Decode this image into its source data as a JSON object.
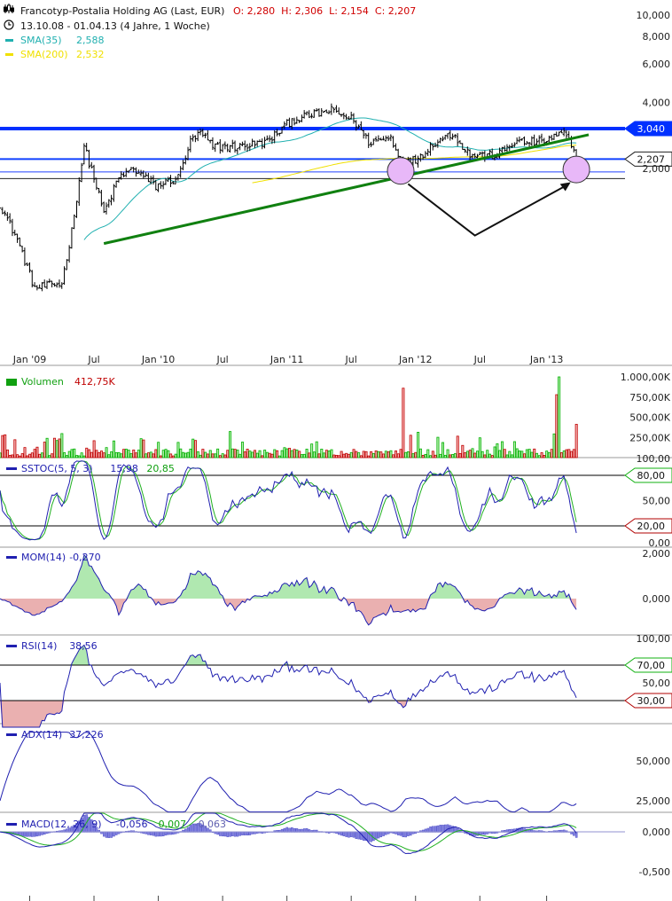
{
  "header": {
    "title": "Francotyp-Postalia Holding AG (Last, EUR)",
    "ohlc": "O: 2,280  H: 2,306  L: 2,154  C: 2,207",
    "period": "13.10.08 - 01.04.13 (4 Jahre, 1 Woche)",
    "sma35_label": "SMA(35)",
    "sma35_value": "2,588",
    "sma200_label": "SMA(200)",
    "sma200_value": "2,532"
  },
  "colors": {
    "sma35": "#20b0b0",
    "sma200": "#f0e000",
    "resistance": "#0030ff",
    "trend": "#108010",
    "circle": "#e8b8f8",
    "up": "#00b000",
    "down": "#c00000",
    "indicator": "#2020b0"
  },
  "chart_data": {
    "type": "ohlc",
    "scale": "log",
    "x_ticks": [
      "Jan '09",
      "Jul",
      "Jan '10",
      "Jul",
      "Jan '11",
      "Jul",
      "Jan '12",
      "Jul",
      "Jan '13"
    ],
    "y_ticks": [
      "10,000",
      "8,000",
      "6,000",
      "4,000",
      "2,000"
    ],
    "ylim": [
      0.5,
      10
    ],
    "close_keypoints": [
      [
        "2008-10-13",
        1.38
      ],
      [
        "2008-12-01",
        0.95
      ],
      [
        "2009-01-19",
        0.57
      ],
      [
        "2009-04-06",
        0.6
      ],
      [
        "2009-05-04",
        1.04
      ],
      [
        "2009-06-08",
        2.52
      ],
      [
        "2009-07-06",
        1.82
      ],
      [
        "2009-08-03",
        1.25
      ],
      [
        "2009-09-14",
        1.82
      ],
      [
        "2009-10-26",
        2.0
      ],
      [
        "2009-12-28",
        1.66
      ],
      [
        "2010-03-01",
        1.82
      ],
      [
        "2010-04-05",
        2.64
      ],
      [
        "2010-05-03",
        2.9
      ],
      [
        "2010-06-07",
        2.52
      ],
      [
        "2010-08-23",
        2.52
      ],
      [
        "2010-11-08",
        2.64
      ],
      [
        "2011-01-17",
        3.33
      ],
      [
        "2011-03-07",
        3.49
      ],
      [
        "2011-05-09",
        3.67
      ],
      [
        "2011-07-11",
        3.33
      ],
      [
        "2011-08-22",
        2.64
      ],
      [
        "2011-10-24",
        2.77
      ],
      [
        "2011-11-28",
        2.09
      ],
      [
        "2012-01-02",
        2.2
      ],
      [
        "2012-02-27",
        2.64
      ],
      [
        "2012-04-16",
        2.9
      ],
      [
        "2012-06-04",
        2.3
      ],
      [
        "2012-08-20",
        2.3
      ],
      [
        "2012-10-08",
        2.64
      ],
      [
        "2012-12-24",
        2.64
      ],
      [
        "2013-02-25",
        2.9
      ],
      [
        "2013-03-18",
        2.52
      ],
      [
        "2013-04-01",
        2.207
      ]
    ],
    "horizontal_lines": [
      {
        "value": 3.04,
        "label": "3,040",
        "style": "resistance"
      },
      {
        "value": 2.207,
        "label": "2,207",
        "style": "last"
      },
      {
        "value": 1.93,
        "style": "thin"
      },
      {
        "value": 1.8,
        "style": "thin"
      }
    ],
    "trendline": {
      "from": [
        "2009-08-03",
        0.91
      ],
      "to": [
        "2013-05-06",
        2.85
      ]
    },
    "arrow": [
      [
        "2011-12-12",
        1.7
      ],
      [
        "2012-06-18",
        0.99
      ],
      [
        "2013-03-11",
        1.7
      ]
    ],
    "circles": [
      [
        "2011-11-21",
        1.95
      ],
      [
        "2013-04-01",
        1.98
      ]
    ],
    "indicators": {
      "volume": {
        "label": "Volumen",
        "value": "412,75K",
        "ticks": [
          "1.000,00K",
          "750,00K",
          "500,00K",
          "250,00K"
        ]
      },
      "sstoc": {
        "label": "SSTOC(5, 5, 3)",
        "k": "15,98",
        "d": "20,85",
        "ticks": [
          "100,00",
          "50,00",
          "0,00"
        ],
        "levels": [
          "80,00",
          "20,00"
        ]
      },
      "mom": {
        "label": "MOM(14)",
        "value": "-0,270",
        "ticks": [
          "2,000",
          "0,000"
        ]
      },
      "rsi": {
        "label": "RSI(14)",
        "value": "38,56",
        "ticks": [
          "100,00",
          "50,00"
        ],
        "levels": [
          "70,00",
          "30,00"
        ]
      },
      "adx": {
        "label": "ADX(14)",
        "value": "37,226",
        "ticks": [
          "50,000",
          "25,000"
        ]
      },
      "macd": {
        "label": "MACD(12, 26, 9)",
        "macd": "-0,056",
        "signal": "0,007",
        "hist": "-0,063",
        "ticks": [
          "0,000",
          "-0,500"
        ]
      }
    }
  }
}
